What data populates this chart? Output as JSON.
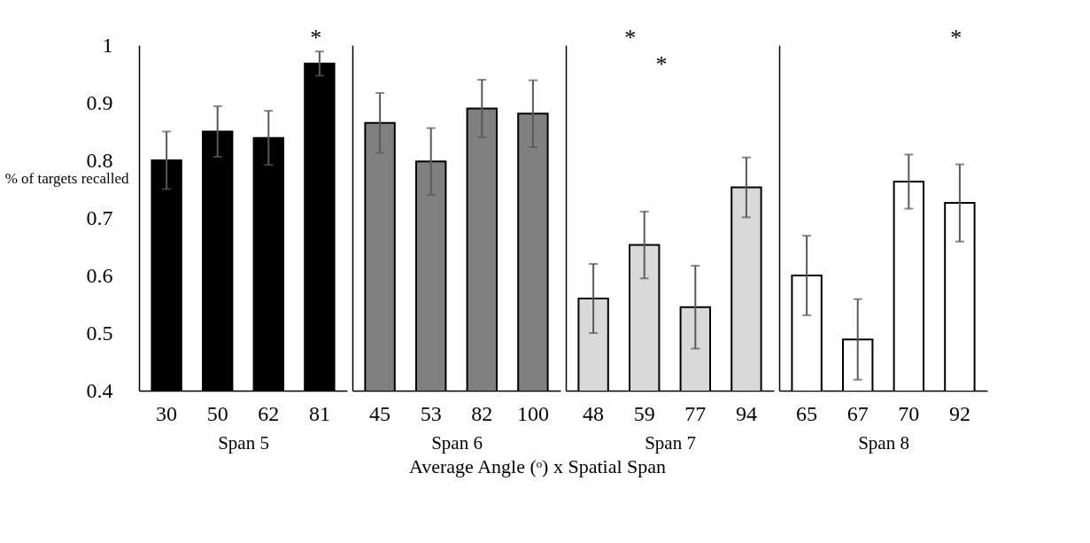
{
  "chart_data": [
    {
      "type": "bar",
      "categories": [
        "30",
        "50",
        "62",
        "81"
      ],
      "values": [
        0.8,
        0.85,
        0.839,
        0.968
      ],
      "errors": [
        0.05,
        0.044,
        0.047,
        0.021
      ],
      "color": "#000000",
      "xlabel": "Span 5",
      "ylabel": "% of targets recalled",
      "ylim": [
        0.4,
        1
      ],
      "yticks": [
        0.4,
        0.5,
        0.6,
        0.7,
        0.8,
        0.9,
        1
      ],
      "grid": false,
      "annotations": [
        "*",
        "Average Angle (ᵒ) x Spatial Span"
      ]
    },
    {
      "type": "bar",
      "categories": [
        "45",
        "53",
        "82",
        "100"
      ],
      "values": [
        0.865,
        0.798,
        0.89,
        0.881
      ],
      "errors": [
        0.052,
        0.058,
        0.05,
        0.058
      ],
      "color": "#808080",
      "xlabel": "Span 6",
      "ylim": [
        0.4,
        1
      ],
      "yticks": [
        0.4,
        0.5,
        0.6,
        0.7,
        0.8,
        0.9,
        1
      ],
      "tick_labels": "x",
      "grid": false
    },
    {
      "type": "bar",
      "categories": [
        "48",
        "59",
        "77",
        "94"
      ],
      "values": [
        0.56,
        0.653,
        0.545,
        0.753
      ],
      "errors": [
        0.06,
        0.058,
        0.072,
        0.052
      ],
      "color": "#d9d9d9",
      "xlabel": "Span 7",
      "ylim": [
        0.4,
        1
      ],
      "yticks": [
        0.4,
        0.5,
        0.6,
        0.7,
        0.8,
        0.9,
        1
      ],
      "tick_labels": "x",
      "grid": false,
      "annotations": [
        "*",
        "*"
      ]
    },
    {
      "type": "bar",
      "categories": [
        "65",
        "67",
        "70",
        "92"
      ],
      "values": [
        0.6,
        0.489,
        0.763,
        0.726
      ],
      "errors": [
        0.069,
        0.07,
        0.047,
        0.067
      ],
      "color": "#ffffff",
      "xlabel": "Span 8",
      "ylim": [
        0.4,
        1
      ],
      "yticks": [
        0.4,
        0.5,
        0.6,
        0.7,
        0.8,
        0.9,
        1
      ],
      "tick_labels": "x",
      "grid": false,
      "annotations": [
        "*"
      ]
    }
  ]
}
